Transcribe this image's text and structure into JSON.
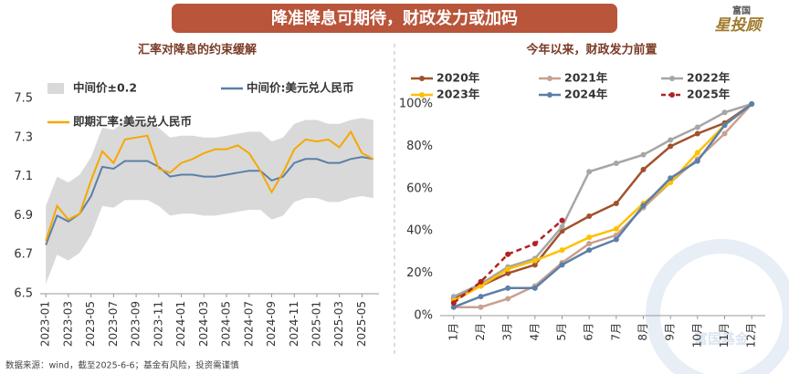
{
  "header": {
    "title": "降准降息可期待，财政发力或加码",
    "logo_top": "富国",
    "logo_main": "星投顾"
  },
  "footer": "数据来源：wind，截至2025-6-6；基金有风险，投资需谨慎",
  "watermark": "富国基金",
  "chart_data": [
    {
      "type": "line",
      "title": "汇率对降息的约束缓解",
      "categories": [
        "2023-01",
        null,
        "2023-03",
        null,
        "2023-05",
        null,
        "2023-07",
        null,
        "2023-09",
        null,
        "2023-11",
        null,
        "2024-01",
        null,
        "2024-03",
        null,
        "2024-05",
        null,
        "2024-07",
        null,
        "2024-09",
        null,
        "2024-11",
        null,
        "2025-01",
        null,
        "2025-03",
        null,
        "2025-05",
        null
      ],
      "ylim": [
        6.5,
        7.5
      ],
      "yticks": [
        6.5,
        6.7,
        6.9,
        7.1,
        7.3,
        7.5
      ],
      "grid": false,
      "series": [
        {
          "name": "中间价±0.2",
          "color": "#d9d9d9",
          "low": [
            6.55,
            6.7,
            6.67,
            6.71,
            6.8,
            6.95,
            6.94,
            6.98,
            6.98,
            6.98,
            6.95,
            6.9,
            6.91,
            6.91,
            6.9,
            6.9,
            6.91,
            6.92,
            6.93,
            6.93,
            6.88,
            6.9,
            6.97,
            6.99,
            6.99,
            6.97,
            6.97,
            6.99,
            7.0,
            6.99
          ],
          "high": [
            6.95,
            7.1,
            7.07,
            7.11,
            7.2,
            7.35,
            7.34,
            7.38,
            7.38,
            7.38,
            7.35,
            7.3,
            7.31,
            7.31,
            7.3,
            7.3,
            7.31,
            7.32,
            7.33,
            7.33,
            7.28,
            7.3,
            7.37,
            7.39,
            7.39,
            7.37,
            7.37,
            7.39,
            7.4,
            7.39
          ]
        },
        {
          "name": "中间价:美元兑人民币",
          "color": "#5b7fa8",
          "values": [
            6.75,
            6.9,
            6.87,
            6.91,
            7.0,
            7.15,
            7.14,
            7.18,
            7.18,
            7.18,
            7.15,
            7.1,
            7.11,
            7.11,
            7.1,
            7.1,
            7.11,
            7.12,
            7.13,
            7.13,
            7.08,
            7.1,
            7.17,
            7.19,
            7.19,
            7.17,
            7.17,
            7.19,
            7.2,
            7.19
          ]
        },
        {
          "name": "即期汇率:美元兑人民币",
          "color": "#f5a800",
          "values": [
            6.77,
            6.95,
            6.88,
            6.91,
            7.08,
            7.23,
            7.17,
            7.29,
            7.3,
            7.31,
            7.14,
            7.12,
            7.17,
            7.19,
            7.22,
            7.24,
            7.24,
            7.26,
            7.22,
            7.13,
            7.02,
            7.12,
            7.24,
            7.29,
            7.28,
            7.29,
            7.25,
            7.33,
            7.22,
            7.19
          ]
        }
      ]
    },
    {
      "type": "line",
      "title": "今年以来，财政发力前置",
      "categories": [
        "1月",
        "2月",
        "3月",
        "4月",
        "5月",
        "6月",
        "7月",
        "8月",
        "9月",
        "10月",
        "11月",
        "12月"
      ],
      "ylim": [
        0,
        100
      ],
      "yticks": [
        {
          "value": 0,
          "label": "0%"
        },
        {
          "value": 20,
          "label": "20%"
        },
        {
          "value": 40,
          "label": "40%"
        },
        {
          "value": 60,
          "label": "60%"
        },
        {
          "value": 80,
          "label": "80%"
        },
        {
          "value": 100,
          "label": "100%"
        }
      ],
      "grid": false,
      "markers": true,
      "series": [
        {
          "name": "2020年",
          "color": "#a0522d",
          "values": [
            8,
            14,
            20,
            24,
            40,
            47,
            53,
            69,
            80,
            86,
            91,
            100
          ]
        },
        {
          "name": "2021年",
          "color": "#c9a08f",
          "values": [
            4,
            4,
            8,
            14,
            25,
            34,
            38,
            51,
            63,
            74,
            86,
            100
          ]
        },
        {
          "name": "2022年",
          "color": "#a6a6a6",
          "values": [
            9,
            15,
            23,
            27,
            42,
            68,
            72,
            76,
            83,
            89,
            96,
            100
          ]
        },
        {
          "name": "2023年",
          "color": "#ffc000",
          "values": [
            7,
            14,
            22,
            26,
            31,
            37,
            41,
            53,
            63,
            77,
            90,
            100
          ]
        },
        {
          "name": "2024年",
          "color": "#5b7fa8",
          "values": [
            4,
            9,
            13,
            13,
            24,
            31,
            36,
            52,
            65,
            73,
            90,
            100
          ]
        },
        {
          "name": "2025年",
          "color": "#b22222",
          "style": "dashed",
          "values": [
            6,
            16,
            29,
            34,
            45,
            null,
            null,
            null,
            null,
            null,
            null,
            null
          ]
        }
      ]
    }
  ]
}
